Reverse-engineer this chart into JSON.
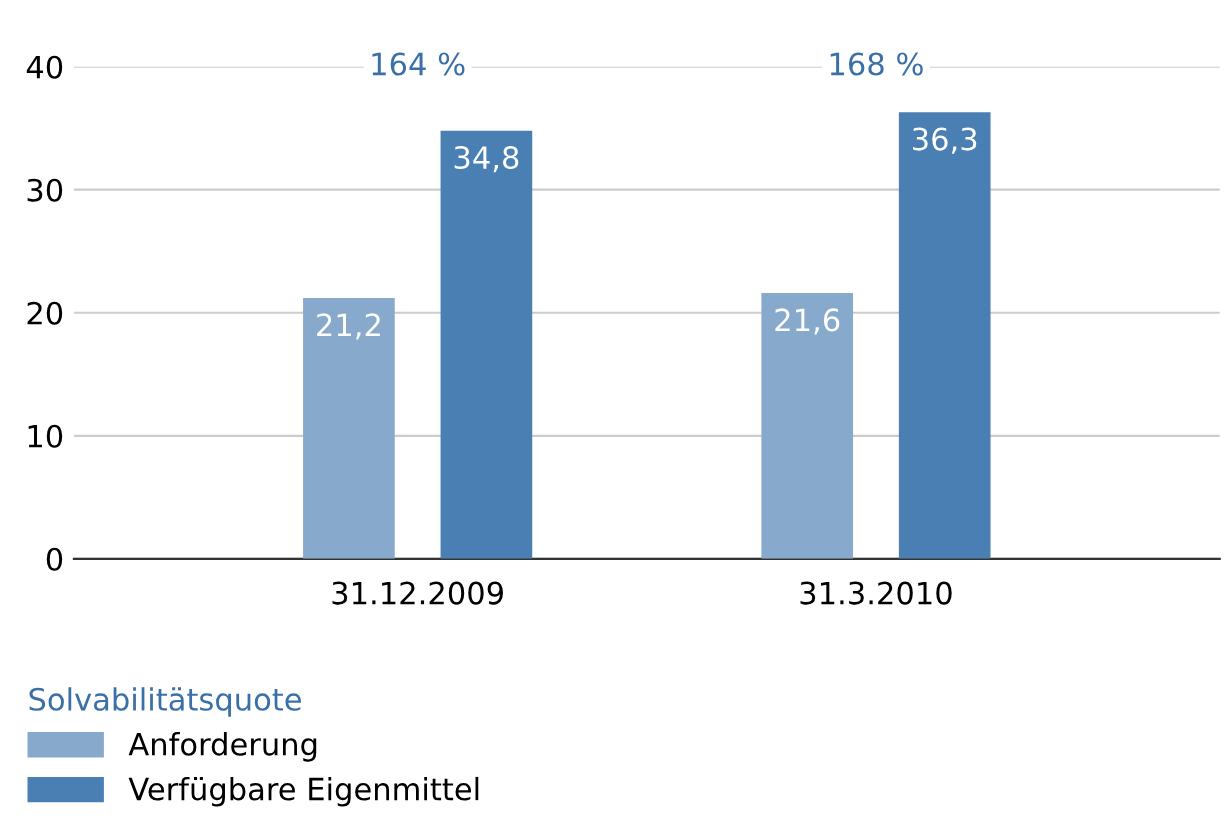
{
  "chart_data": {
    "type": "bar",
    "categories": [
      "31.12.2009",
      "31.3.2010"
    ],
    "series": [
      {
        "name": "Anforderung",
        "color": "#87a9cc",
        "values": [
          21.2,
          21.6
        ],
        "value_labels": [
          "21,2",
          "21,6"
        ]
      },
      {
        "name": "Verfügbare Eigenmittel",
        "color": "#4a7fb3",
        "values": [
          34.8,
          36.3
        ],
        "value_labels": [
          "34,8",
          "36,3"
        ]
      }
    ],
    "ylim": [
      0,
      40
    ],
    "yticks": [
      0,
      10,
      20,
      30,
      40
    ],
    "grid": "y",
    "legend": "bottom",
    "legend_title": "Solvabilitätsquote",
    "annotations": [
      "164 %",
      "168 %"
    ]
  }
}
